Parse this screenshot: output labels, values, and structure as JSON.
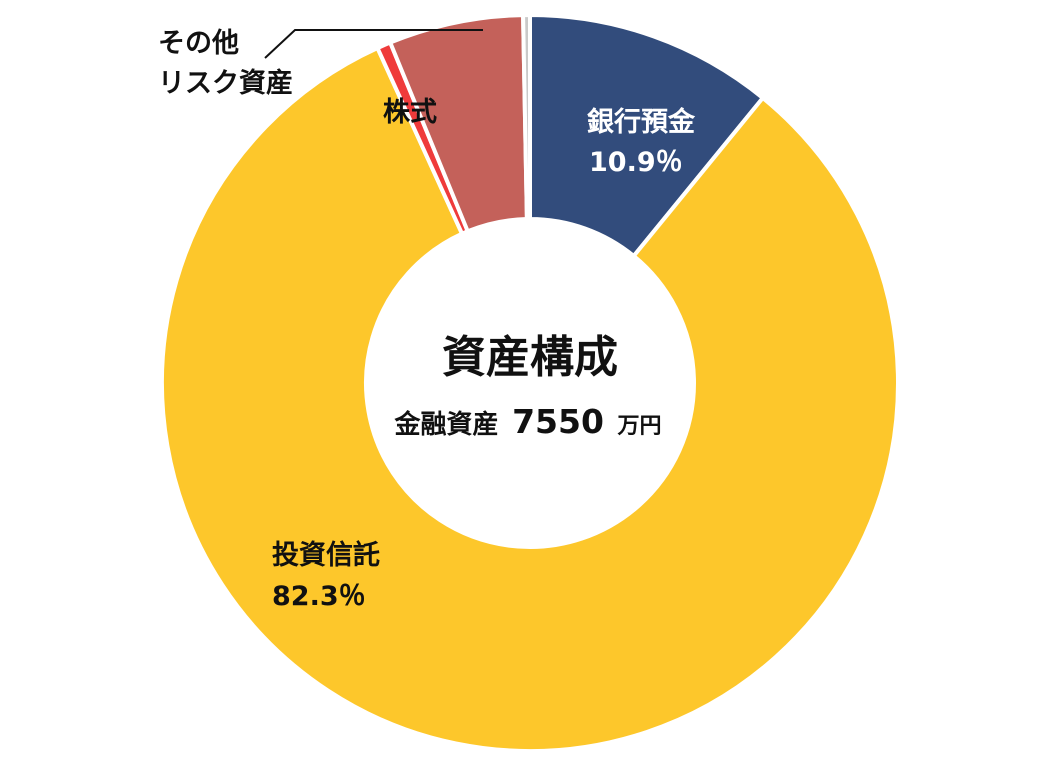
{
  "chart_data": {
    "type": "pie",
    "center": {
      "title": "資産構成",
      "subtitle_prefix": "金融資産",
      "total_value": "7550",
      "total_unit": "万円"
    },
    "slices": [
      {
        "name": "銀行預金",
        "value": 10.9,
        "value_label": "10.9％",
        "color": "#324c7c",
        "label_color": "#ffffff"
      },
      {
        "name": "投資信託",
        "value": 82.3,
        "value_label": "82.3％",
        "color": "#fdc72b",
        "label_color": "#111111"
      },
      {
        "name": "その他リスク資産",
        "name_lines": [
          "その他",
          "リスク資産"
        ],
        "value": 0.6,
        "value_label": "",
        "color": "#ef3b3b",
        "label_color": "#111111"
      },
      {
        "name": "株式",
        "value": 5.9,
        "value_label": "",
        "color": "#c4615a",
        "label_color": "#111111"
      },
      {
        "name": "",
        "value": 0.3,
        "value_label": "",
        "color": "#c9c9c9",
        "label_color": "#111111"
      }
    ]
  }
}
